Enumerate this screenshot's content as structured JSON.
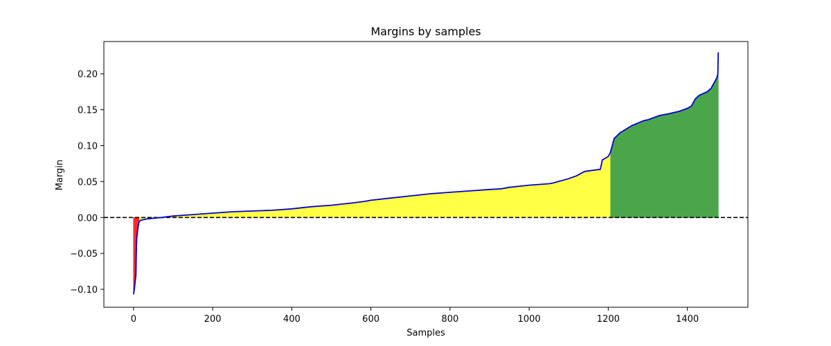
{
  "chart_data": {
    "type": "area",
    "title": "Margins by samples",
    "xlabel": "Samples",
    "ylabel": "Margin",
    "xlim": [
      -75,
      1553
    ],
    "ylim": [
      -0.125,
      0.245
    ],
    "x_ticks": [
      0,
      200,
      400,
      600,
      800,
      1000,
      1200,
      1400
    ],
    "x_tick_labels": [
      "0",
      "200",
      "400",
      "600",
      "800",
      "1000",
      "1200",
      "1400"
    ],
    "y_ticks": [
      -0.1,
      -0.05,
      0.0,
      0.05,
      0.1,
      0.15,
      0.2
    ],
    "y_tick_labels": [
      "−0.10",
      "−0.05",
      "0.00",
      "0.05",
      "0.10",
      "0.15",
      "0.20"
    ],
    "grid": false,
    "reference_line": {
      "y": 0.0,
      "style": "dashed",
      "color": "#000000"
    },
    "series": [
      {
        "line_color": "#0000cc",
        "x": [
          0,
          2,
          4,
          6,
          7,
          8,
          9,
          11,
          14,
          18,
          25,
          35,
          50,
          70,
          100,
          150,
          200,
          250,
          300,
          350,
          400,
          450,
          500,
          550,
          580,
          600,
          650,
          700,
          750,
          800,
          850,
          900,
          930,
          950,
          1000,
          1050,
          1060,
          1100,
          1120,
          1140,
          1180,
          1185,
          1200,
          1205,
          1210,
          1215,
          1230,
          1260,
          1290,
          1300,
          1330,
          1350,
          1380,
          1400,
          1410,
          1420,
          1430,
          1450,
          1460,
          1470,
          1475,
          1477,
          1478
        ],
        "y": [
          -0.107,
          -0.1,
          -0.09,
          -0.08,
          -0.05,
          -0.03,
          -0.025,
          -0.015,
          -0.006,
          -0.004,
          -0.003,
          -0.002,
          -0.001,
          0.0,
          0.002,
          0.004,
          0.006,
          0.008,
          0.009,
          0.01,
          0.012,
          0.015,
          0.017,
          0.02,
          0.022,
          0.024,
          0.027,
          0.03,
          0.033,
          0.035,
          0.037,
          0.039,
          0.04,
          0.042,
          0.045,
          0.047,
          0.048,
          0.054,
          0.058,
          0.064,
          0.067,
          0.08,
          0.085,
          0.09,
          0.1,
          0.11,
          0.118,
          0.128,
          0.135,
          0.136,
          0.142,
          0.144,
          0.148,
          0.152,
          0.155,
          0.165,
          0.17,
          0.175,
          0.18,
          0.19,
          0.195,
          0.2,
          0.23
        ]
      }
    ],
    "fill_regions": [
      {
        "x_from": 0,
        "x_to": 15,
        "color": "#ff2a2a"
      },
      {
        "x_from": 15,
        "x_to": 1206,
        "color": "#ffff44"
      },
      {
        "x_from": 1206,
        "x_to": 1478,
        "color": "#4ba64b"
      }
    ]
  }
}
